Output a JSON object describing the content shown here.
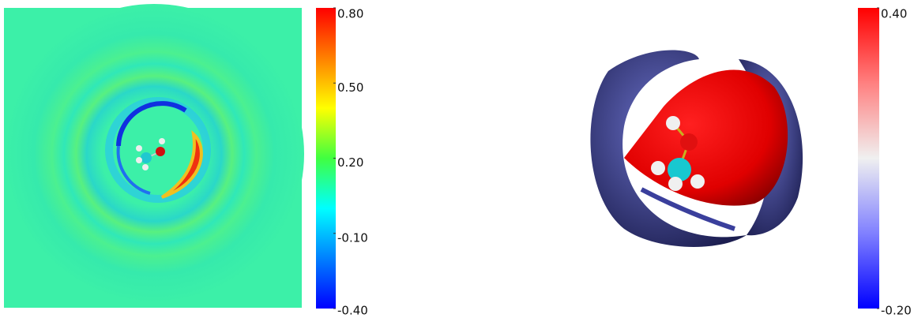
{
  "chart_data": [
    {
      "type": "heatmap",
      "colormap": "jet",
      "clim": [
        -0.4,
        0.8
      ],
      "cticks": [
        {
          "value": 0.8,
          "label": "0.80"
        },
        {
          "value": 0.5,
          "label": "0.50"
        },
        {
          "value": 0.2,
          "label": "0.20"
        },
        {
          "value": -0.1,
          "label": "-0.10"
        },
        {
          "value": -0.4,
          "label": "-0.40"
        }
      ]
    },
    {
      "type": "isosurface",
      "colormap": "coolwarm",
      "clim": [
        -0.2,
        0.4
      ],
      "cticks": [
        {
          "value": 0.4,
          "label": "0.40"
        },
        {
          "value": -0.2,
          "label": "-0.20"
        }
      ]
    }
  ]
}
